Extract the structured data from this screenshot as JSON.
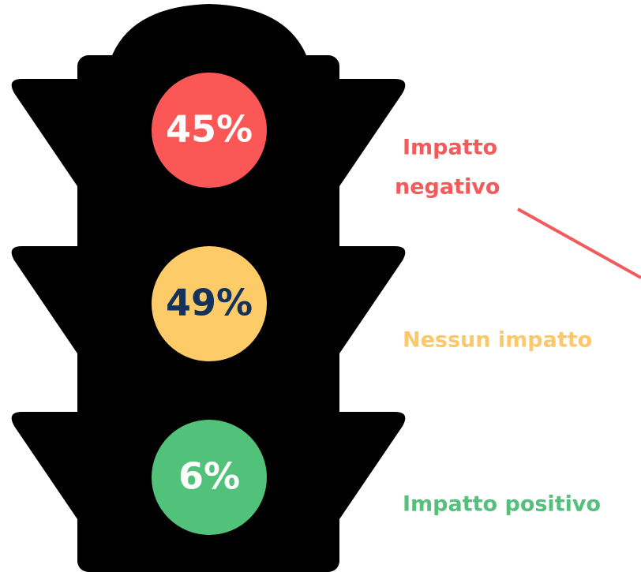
{
  "lights": [
    {
      "value": "45%",
      "label": [
        "Impatto",
        "negativo"
      ],
      "color": "#fb5757",
      "text_color": "#ffffff",
      "label_color": "#f25a5c"
    },
    {
      "value": "49%",
      "label": [
        "Nessun impatto"
      ],
      "color": "#fecb69",
      "text_color": "#14335c",
      "label_color": "#fdc86a"
    },
    {
      "value": "6%",
      "label": [
        "Impatto positivo"
      ],
      "color": "#52c27a",
      "text_color": "#ffffff",
      "label_color": "#55c07b"
    }
  ]
}
